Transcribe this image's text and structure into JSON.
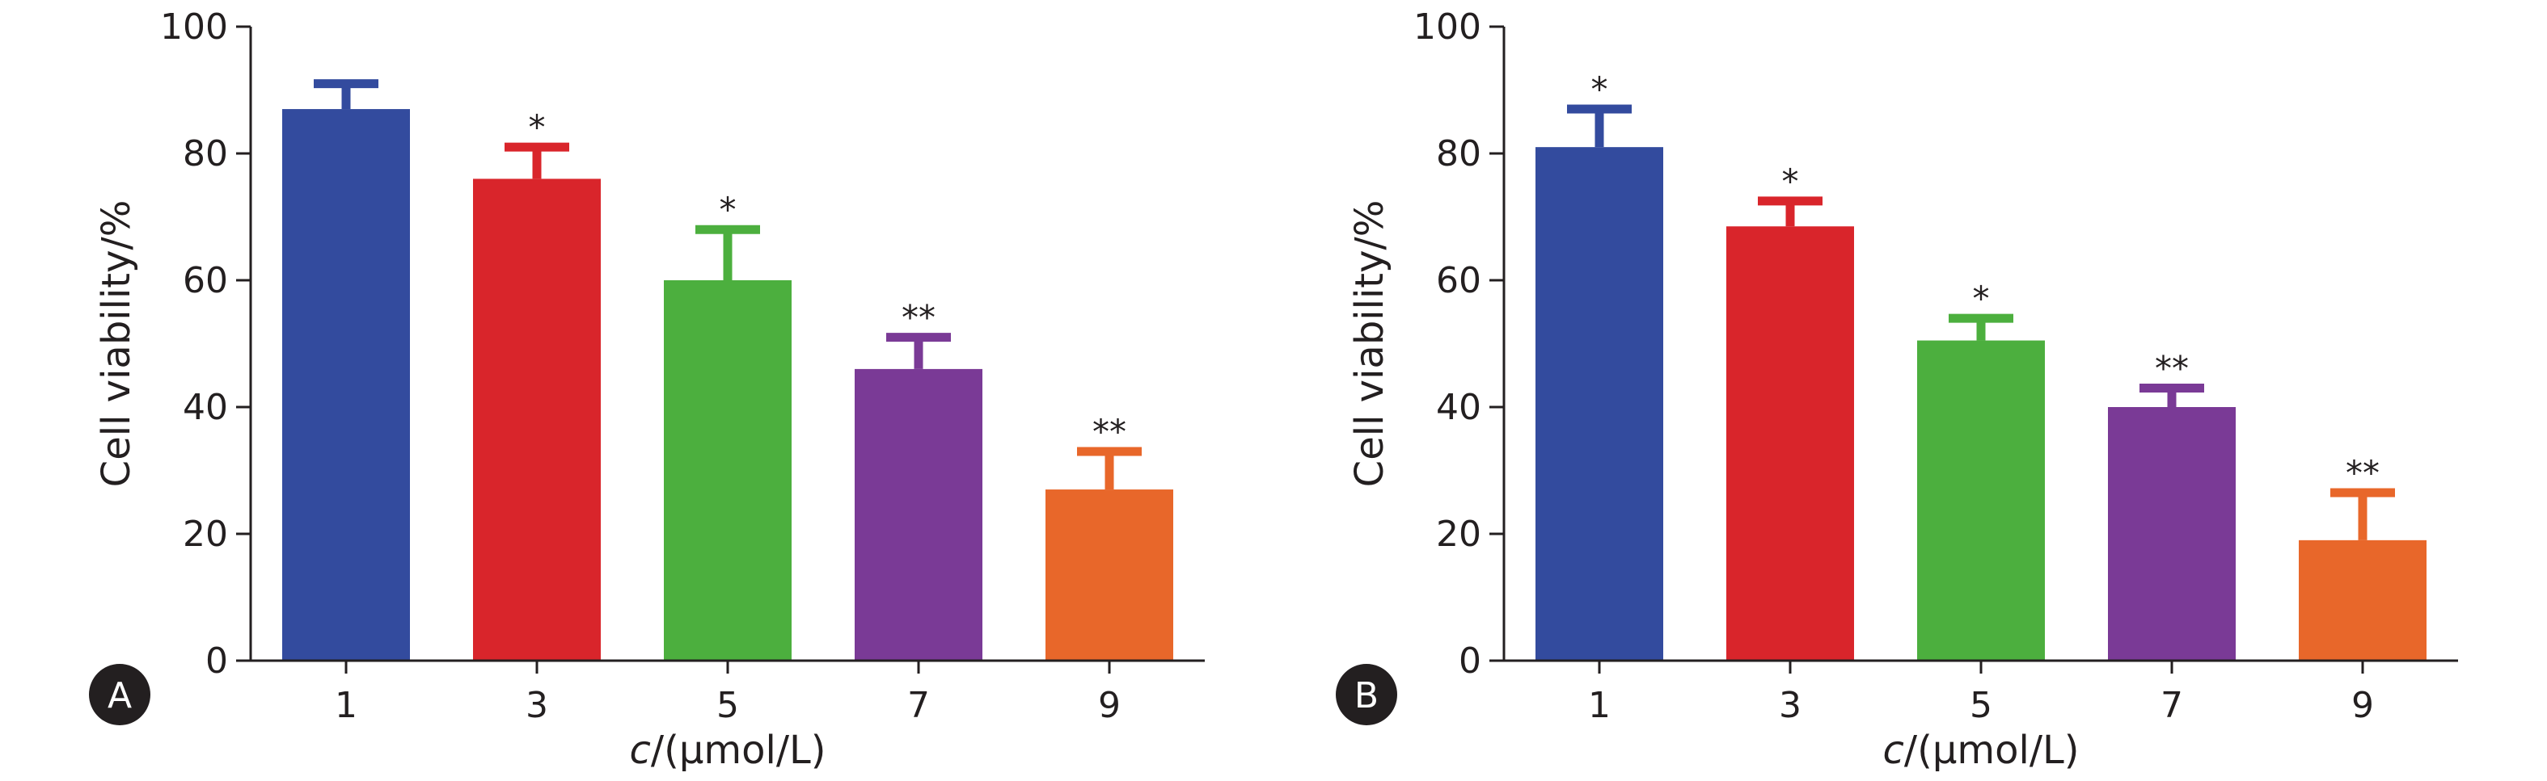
{
  "colors": {
    "bars": [
      "#334b9e",
      "#d9252b",
      "#4caf3e",
      "#7a3a96",
      "#e8672a"
    ],
    "axis": "#231f20",
    "badge": "#231f20"
  },
  "chart_data": [
    {
      "type": "bar",
      "panel_label": "A",
      "categories": [
        "1",
        "3",
        "5",
        "7",
        "9"
      ],
      "values": [
        87,
        76,
        60,
        46,
        27
      ],
      "errors": [
        4,
        5,
        8,
        5,
        6
      ],
      "significance": [
        "",
        "*",
        "*",
        "**",
        "**"
      ],
      "xlabel_prefix": "c",
      "xlabel_suffix": "/(μmol/L)",
      "ylabel": "Cell viability/%",
      "ylim": [
        0,
        100
      ],
      "yticks": [
        0,
        20,
        40,
        60,
        80,
        100
      ],
      "grid": false
    },
    {
      "type": "bar",
      "panel_label": "B",
      "categories": [
        "1",
        "3",
        "5",
        "7",
        "9"
      ],
      "values": [
        81,
        68.5,
        50.5,
        40,
        19
      ],
      "errors": [
        6,
        4,
        3.5,
        3,
        7.5
      ],
      "significance": [
        "*",
        "*",
        "*",
        "**",
        "**"
      ],
      "xlabel_prefix": "c",
      "xlabel_suffix": "/(μmol/L)",
      "ylabel": "Cell viability/%",
      "ylim": [
        0,
        100
      ],
      "yticks": [
        0,
        20,
        40,
        60,
        80,
        100
      ],
      "grid": false
    }
  ]
}
